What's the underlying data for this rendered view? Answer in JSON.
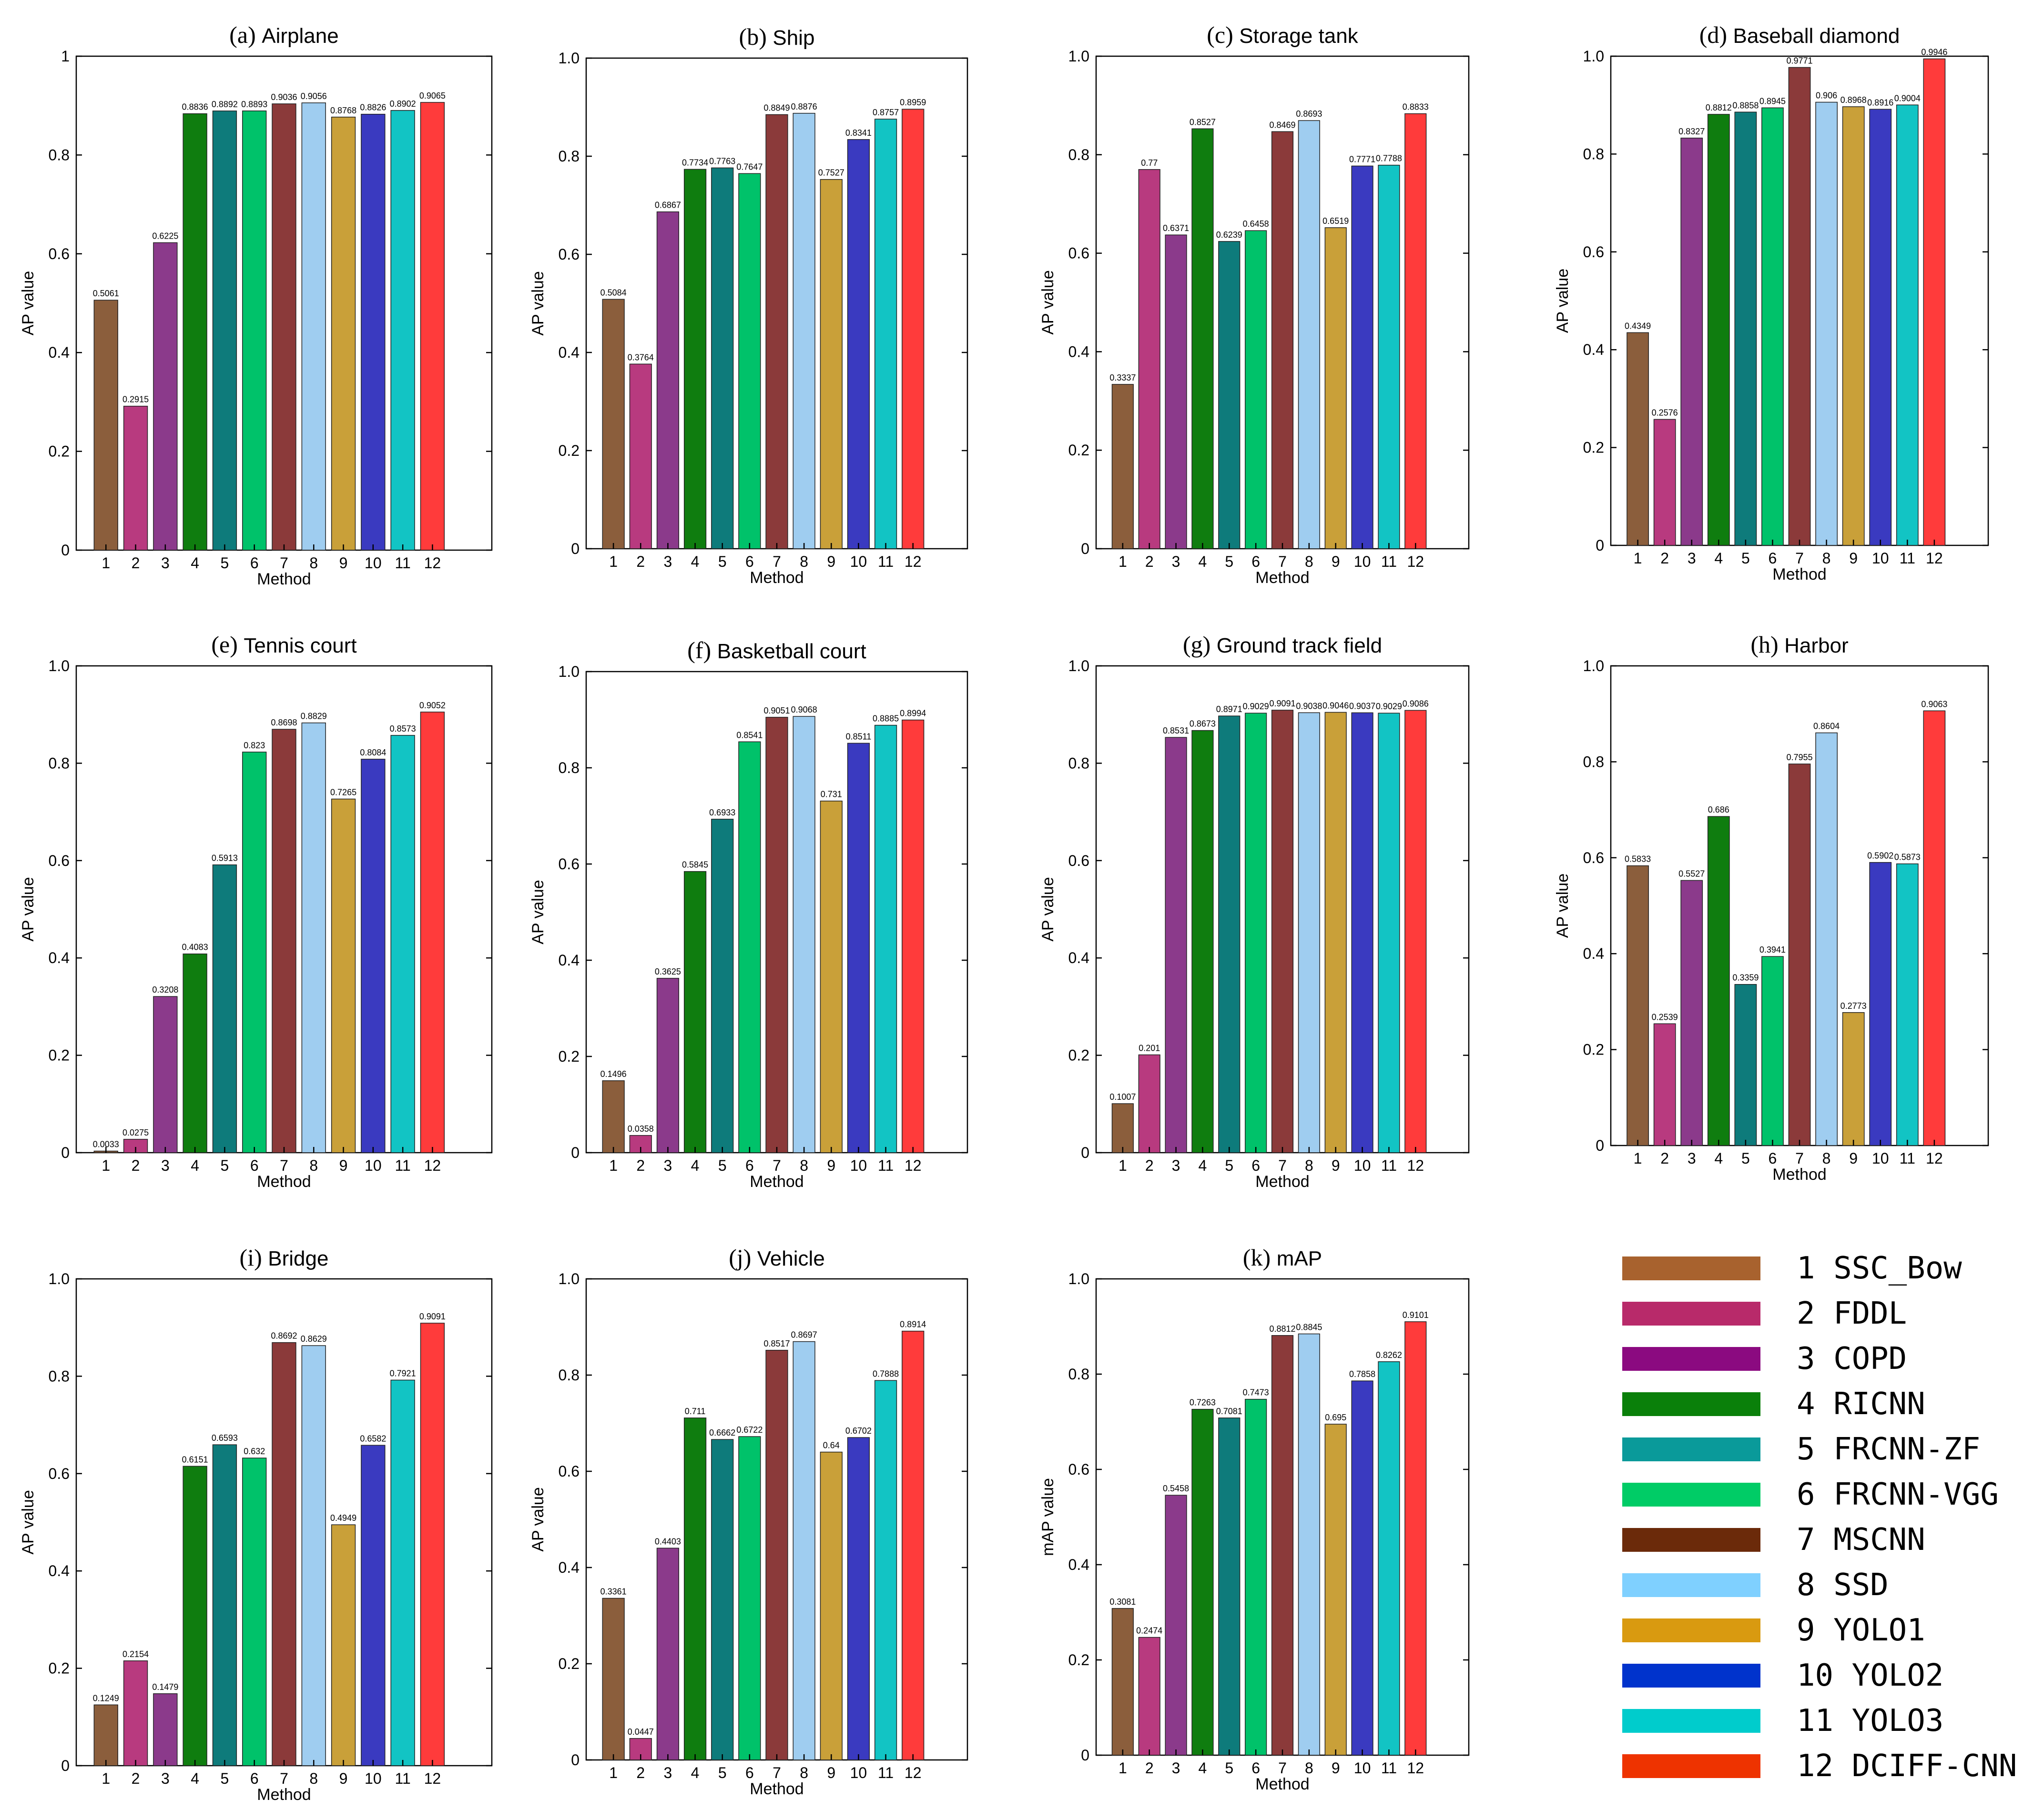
{
  "colors": [
    "#8b5e3c",
    "#b83a7f",
    "#8b3a8b",
    "#0f7d0f",
    "#0e7b7b",
    "#00c26a",
    "#8b3a3a",
    "#9fcdf0",
    "#c9a039",
    "#3a3ac0",
    "#12c4c4",
    "#ff3b3b"
  ],
  "legend_colors": [
    "#a8622e",
    "#b82a6a",
    "#8b0a80",
    "#0a800a",
    "#0a9a9a",
    "#00cc66",
    "#6b2a0a",
    "#7fd0ff",
    "#d99a10",
    "#0033cc",
    "#00cccc",
    "#ee3300"
  ],
  "legend": [
    {
      "num": "1",
      "name": "SSC_Bow"
    },
    {
      "num": "2",
      "name": "FDDL"
    },
    {
      "num": "3",
      "name": "COPD"
    },
    {
      "num": "4",
      "name": "RICNN"
    },
    {
      "num": "5",
      "name": "FRCNN-ZF"
    },
    {
      "num": "6",
      "name": "FRCNN-VGG"
    },
    {
      "num": "7",
      "name": "MSCNN"
    },
    {
      "num": "8",
      "name": "SSD"
    },
    {
      "num": "9",
      "name": "YOLO1"
    },
    {
      "num": "10",
      "name": "YOLO2"
    },
    {
      "num": "11",
      "name": "YOLO3"
    },
    {
      "num": "12",
      "name": "DCIFF-CNN"
    }
  ],
  "chart_data": [
    {
      "type": "bar",
      "title_prefix": "(a)",
      "title": "Airplane",
      "xlabel": "Method",
      "ylabel": "AP value",
      "categories": [
        "1",
        "2",
        "3",
        "4",
        "5",
        "6",
        "7",
        "8",
        "9",
        "10",
        "11",
        "12"
      ],
      "values": [
        0.5061,
        0.2915,
        0.6225,
        0.8836,
        0.8892,
        0.8893,
        0.9036,
        0.9056,
        0.8768,
        0.8826,
        0.8902,
        0.9065
      ],
      "labels": [
        "0.5061",
        "0.2915",
        "0.6225",
        "0.8836",
        "0.8892",
        "0.8893",
        "0.9036",
        "0.9056",
        "0.8768",
        "0.8826",
        "0.8902",
        "0.9065"
      ],
      "ylim": [
        0,
        1
      ],
      "yticks": [
        "0",
        "0.2",
        "0.4",
        "0.6",
        "0.8",
        "1"
      ]
    },
    {
      "type": "bar",
      "title_prefix": "(b)",
      "title": "Ship",
      "xlabel": "Method",
      "ylabel": "AP value",
      "categories": [
        "1",
        "2",
        "3",
        "4",
        "5",
        "6",
        "7",
        "8",
        "9",
        "10",
        "11",
        "12"
      ],
      "values": [
        0.5084,
        0.3764,
        0.6867,
        0.7734,
        0.7763,
        0.7647,
        0.8849,
        0.8876,
        0.7527,
        0.8341,
        0.8757,
        0.8959
      ],
      "labels": [
        "0.5084",
        "0.3764",
        "0.6867",
        "0.7734",
        "0.7763",
        "0.7647",
        "0.8849",
        "0.8876",
        "0.7527",
        "0.8341",
        "0.8757",
        "0.8959"
      ],
      "ylim": [
        0,
        1
      ],
      "yticks": [
        "0",
        "0.2",
        "0.4",
        "0.6",
        "0.8",
        "1.0"
      ]
    },
    {
      "type": "bar",
      "title_prefix": "(c)",
      "title": "Storage tank",
      "xlabel": "Method",
      "ylabel": "AP value",
      "categories": [
        "1",
        "2",
        "3",
        "4",
        "5",
        "6",
        "7",
        "8",
        "9",
        "10",
        "11",
        "12"
      ],
      "values": [
        0.3337,
        0.77,
        0.6371,
        0.8527,
        0.6239,
        0.6458,
        0.8469,
        0.8693,
        0.6519,
        0.7771,
        0.7788,
        0.8833
      ],
      "labels": [
        "0.3337",
        "0.77",
        "0.6371",
        "0.8527",
        "0.6239",
        "0.6458",
        "0.8469",
        "0.8693",
        "0.6519",
        "0.7771",
        "0.7788",
        "0.8833"
      ],
      "ylim": [
        0,
        1
      ],
      "yticks": [
        "0",
        "0.2",
        "0.4",
        "0.6",
        "0.8",
        "1.0"
      ]
    },
    {
      "type": "bar",
      "title_prefix": "(d)",
      "title": "Baseball diamond",
      "xlabel": "Method",
      "ylabel": "AP value",
      "categories": [
        "1",
        "2",
        "3",
        "4",
        "5",
        "6",
        "7",
        "8",
        "9",
        "10",
        "11",
        "12"
      ],
      "values": [
        0.4349,
        0.2576,
        0.8327,
        0.8812,
        0.8858,
        0.8945,
        0.9771,
        0.906,
        0.8968,
        0.8916,
        0.9004,
        0.9946
      ],
      "labels": [
        "0.4349",
        "0.2576",
        "0.8327",
        "0.8812",
        "0.8858",
        "0.8945",
        "0.9771",
        "0.906",
        "0.8968",
        "0.8916",
        "0.9004",
        "0.9946"
      ],
      "ylim": [
        0,
        1
      ],
      "yticks": [
        "0",
        "0.2",
        "0.4",
        "0.6",
        "0.8",
        "1.0"
      ]
    },
    {
      "type": "bar",
      "title_prefix": "(e)",
      "title": "Tennis court",
      "xlabel": "Method",
      "ylabel": "AP value",
      "categories": [
        "1",
        "2",
        "3",
        "4",
        "5",
        "6",
        "7",
        "8",
        "9",
        "10",
        "11",
        "12"
      ],
      "values": [
        0.0033,
        0.0275,
        0.3208,
        0.4083,
        0.5913,
        0.823,
        0.8698,
        0.8829,
        0.7265,
        0.8084,
        0.8573,
        0.9052
      ],
      "labels": [
        "0.0033",
        "0.0275",
        "0.3208",
        "0.4083",
        "0.5913",
        "0.823",
        "0.8698",
        "0.8829",
        "0.7265",
        "0.8084",
        "0.8573",
        "0.9052"
      ],
      "ylim": [
        0,
        1
      ],
      "yticks": [
        "0",
        "0.2",
        "0.4",
        "0.6",
        "0.8",
        "1.0"
      ]
    },
    {
      "type": "bar",
      "title_prefix": "(f)",
      "title": "Basketball court",
      "xlabel": "Method",
      "ylabel": "AP value",
      "categories": [
        "1",
        "2",
        "3",
        "4",
        "5",
        "6",
        "7",
        "8",
        "9",
        "10",
        "11",
        "12"
      ],
      "values": [
        0.1496,
        0.0358,
        0.3625,
        0.5845,
        0.6933,
        0.8541,
        0.9051,
        0.9068,
        0.731,
        0.8511,
        0.8885,
        0.8994
      ],
      "labels": [
        "0.1496",
        "0.0358",
        "0.3625",
        "0.5845",
        "0.6933",
        "0.8541",
        "0.9051",
        "0.9068",
        "0.731",
        "0.8511",
        "0.8885",
        "0.8994"
      ],
      "ylim": [
        0,
        1
      ],
      "yticks": [
        "0",
        "0.2",
        "0.4",
        "0.6",
        "0.8",
        "1.0"
      ]
    },
    {
      "type": "bar",
      "title_prefix": "(g)",
      "title": "Ground track field",
      "xlabel": "Method",
      "ylabel": "AP value",
      "categories": [
        "1",
        "2",
        "3",
        "4",
        "5",
        "6",
        "7",
        "8",
        "9",
        "10",
        "11",
        "12"
      ],
      "values": [
        0.1007,
        0.201,
        0.8531,
        0.8673,
        0.8971,
        0.9029,
        0.9091,
        0.9038,
        0.9046,
        0.9037,
        0.9029,
        0.9086
      ],
      "labels": [
        "0.1007",
        "0.201",
        "0.8531",
        "0.8673",
        "0.8971",
        "0.9029",
        "0.9091",
        "0.9038",
        "0.9046",
        "0.9037",
        "0.9029",
        "0.9086"
      ],
      "ylim": [
        0,
        1
      ],
      "yticks": [
        "0",
        "0.2",
        "0.4",
        "0.6",
        "0.8",
        "1.0"
      ]
    },
    {
      "type": "bar",
      "title_prefix": "(h)",
      "title": "Harbor",
      "xlabel": "Method",
      "ylabel": "AP value",
      "categories": [
        "1",
        "2",
        "3",
        "4",
        "5",
        "6",
        "7",
        "8",
        "9",
        "10",
        "11",
        "12"
      ],
      "values": [
        0.5833,
        0.2539,
        0.5527,
        0.686,
        0.3359,
        0.3941,
        0.7955,
        0.8604,
        0.2773,
        0.5902,
        0.5873,
        0.9063
      ],
      "labels": [
        "0.5833",
        "0.2539",
        "0.5527",
        "0.686",
        "0.3359",
        "0.3941",
        "0.7955",
        "0.8604",
        "0.2773",
        "0.5902",
        "0.5873",
        "0.9063"
      ],
      "ylim": [
        0,
        1
      ],
      "yticks": [
        "0",
        "0.2",
        "0.4",
        "0.6",
        "0.8",
        "1.0"
      ]
    },
    {
      "type": "bar",
      "title_prefix": "(i)",
      "title": "Bridge",
      "xlabel": "Method",
      "ylabel": "AP value",
      "categories": [
        "1",
        "2",
        "3",
        "4",
        "5",
        "6",
        "7",
        "8",
        "9",
        "10",
        "11",
        "12"
      ],
      "values": [
        0.1249,
        0.2154,
        0.1479,
        0.6151,
        0.6593,
        0.632,
        0.8692,
        0.8629,
        0.4949,
        0.6582,
        0.7921,
        0.9091
      ],
      "labels": [
        "0.1249",
        "0.2154",
        "0.1479",
        "0.6151",
        "0.6593",
        "0.632",
        "0.8692",
        "0.8629",
        "0.4949",
        "0.6582",
        "0.7921",
        "0.9091"
      ],
      "ylim": [
        0,
        1
      ],
      "yticks": [
        "0",
        "0.2",
        "0.4",
        "0.6",
        "0.8",
        "1.0"
      ]
    },
    {
      "type": "bar",
      "title_prefix": "(j)",
      "title": "Vehicle",
      "xlabel": "Method",
      "ylabel": "AP value",
      "categories": [
        "1",
        "2",
        "3",
        "4",
        "5",
        "6",
        "7",
        "8",
        "9",
        "10",
        "11",
        "12"
      ],
      "values": [
        0.3361,
        0.0447,
        0.4403,
        0.711,
        0.6662,
        0.6722,
        0.8517,
        0.8697,
        0.64,
        0.6702,
        0.7888,
        0.8914
      ],
      "labels": [
        "0.3361",
        "0.0447",
        "0.4403",
        "0.711",
        "0.6662",
        "0.6722",
        "0.8517",
        "0.8697",
        "0.64",
        "0.6702",
        "0.7888",
        "0.8914"
      ],
      "ylim": [
        0,
        1
      ],
      "yticks": [
        "0",
        "0.2",
        "0.4",
        "0.6",
        "0.8",
        "1.0"
      ]
    },
    {
      "type": "bar",
      "title_prefix": "(k)",
      "title": "mAP",
      "xlabel": "Method",
      "ylabel": "mAP value",
      "categories": [
        "1",
        "2",
        "3",
        "4",
        "5",
        "6",
        "7",
        "8",
        "9",
        "10",
        "11",
        "12"
      ],
      "values": [
        0.3081,
        0.2474,
        0.5458,
        0.7263,
        0.7081,
        0.7473,
        0.8812,
        0.8845,
        0.695,
        0.7858,
        0.8262,
        0.9101
      ],
      "labels": [
        "0.3081",
        "0.2474",
        "0.5458",
        "0.7263",
        "0.7081",
        "0.7473",
        "0.8812",
        "0.8845",
        "0.695",
        "0.7858",
        "0.8262",
        "0.9101"
      ],
      "ylim": [
        0,
        1
      ],
      "yticks": [
        "0",
        "0.2",
        "0.4",
        "0.6",
        "0.8",
        "1.0"
      ]
    }
  ]
}
